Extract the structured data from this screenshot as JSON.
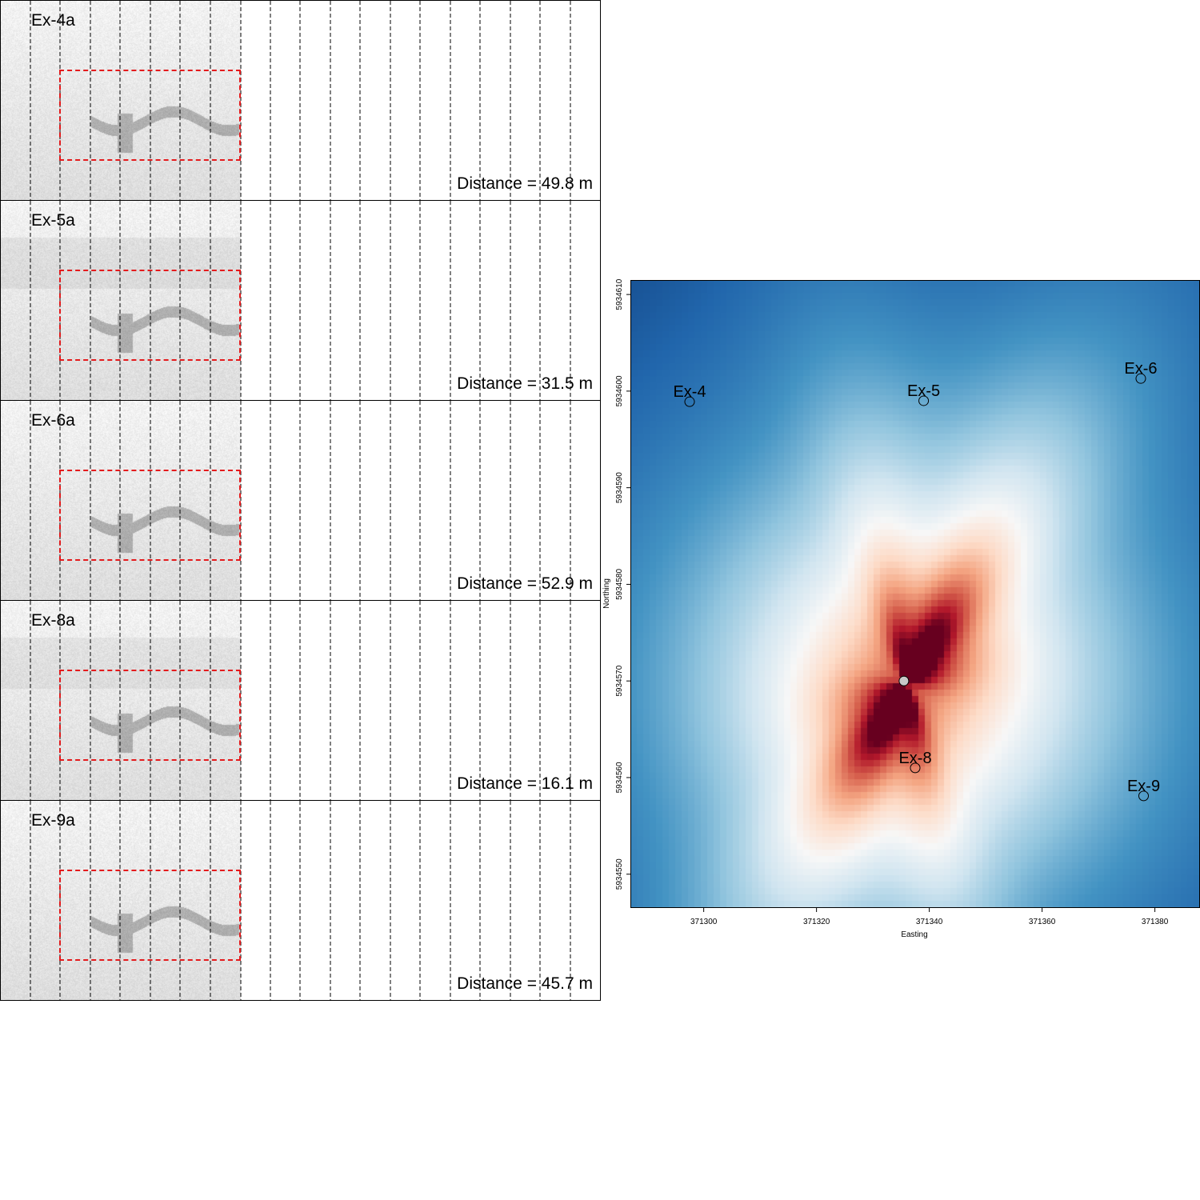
{
  "panels": [
    {
      "label": "Ex-4a",
      "distance": "Distance = 49.8 m"
    },
    {
      "label": "Ex-5a",
      "distance": "Distance = 31.5 m"
    },
    {
      "label": "Ex-6a",
      "distance": "Distance = 52.9 m"
    },
    {
      "label": "Ex-8a",
      "distance": "Distance = 16.1 m"
    },
    {
      "label": "Ex-9a",
      "distance": "Distance = 45.7 m"
    }
  ],
  "map": {
    "xlabel": "Easting",
    "ylabel": "Northing",
    "xticks": [
      "371300",
      "371320",
      "371340",
      "371360",
      "371380"
    ],
    "yticks": [
      "5934610",
      "5934600",
      "5934590",
      "5934580",
      "5934570",
      "5934560",
      "5934550"
    ],
    "xlim": [
      371287,
      371388
    ],
    "ylim": [
      5934546.5,
      5934611.5
    ],
    "stations": [
      {
        "name": "Ex-4",
        "easting": 371297.5,
        "northing": 5934598.9
      },
      {
        "name": "Ex-5",
        "easting": 371339.0,
        "northing": 5934599.0
      },
      {
        "name": "Ex-6",
        "easting": 371377.5,
        "northing": 5934601.3
      },
      {
        "name": "Ex-8",
        "easting": 371337.5,
        "northing": 5934561.0
      },
      {
        "name": "Ex-9",
        "easting": 371378.0,
        "northing": 5934558.1
      }
    ],
    "source": {
      "easting": 371335.5,
      "northing": 5934570.0
    },
    "colors": {
      "low": "#08306b",
      "mid": "#f7f7f7",
      "high": "#b2182b"
    }
  }
}
